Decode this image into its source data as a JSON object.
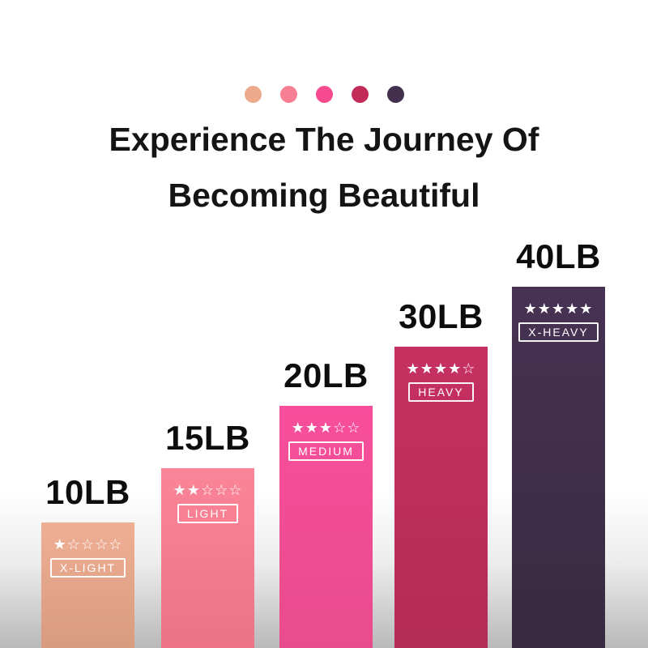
{
  "palette": {
    "dots": [
      {
        "name": "x-light-dot",
        "color": "#EDAA8B"
      },
      {
        "name": "light-dot",
        "color": "#F87F93"
      },
      {
        "name": "medium-dot",
        "color": "#F64B90"
      },
      {
        "name": "heavy-dot",
        "color": "#C22B58"
      },
      {
        "name": "x-heavy-dot",
        "color": "#42304E"
      }
    ]
  },
  "title": {
    "line1": "Experience The Journey Of",
    "line2": "Becoming Beautiful"
  },
  "chart_data": {
    "type": "bar",
    "title": "Experience The Journey Of Becoming Beautiful",
    "categories": [
      "10LB",
      "15LB",
      "20LB",
      "30LB",
      "40LB"
    ],
    "values": [
      10,
      15,
      20,
      30,
      40
    ],
    "unit": "LB",
    "grid": false,
    "legend_position": "none",
    "text_color": "#ffffff",
    "bars": [
      {
        "weight": "10LB",
        "value": 10,
        "level": "X-LIGHT",
        "stars": 1,
        "stars_display": "★☆☆☆☆",
        "color_top": "#EFAF94",
        "color_bottom": "#D79B7F"
      },
      {
        "weight": "15LB",
        "value": 15,
        "level": "LIGHT",
        "stars": 2,
        "stars_display": "★★☆☆☆",
        "color_top": "#FB8598",
        "color_bottom": "#ED7386"
      },
      {
        "weight": "20LB",
        "value": 20,
        "level": "MEDIUM",
        "stars": 3,
        "stars_display": "★★★☆☆",
        "color_top": "#F74E9C",
        "color_bottom": "#E94C8C"
      },
      {
        "weight": "30LB",
        "value": 30,
        "level": "HEAVY",
        "stars": 4,
        "stars_display": "★★★★☆",
        "color_top": "#C63061",
        "color_bottom": "#B22C55"
      },
      {
        "weight": "40LB",
        "value": 40,
        "level": "X-HEAVY",
        "stars": 5,
        "stars_display": "★★★★★",
        "color_top": "#473253",
        "color_bottom": "#382A42"
      }
    ]
  }
}
